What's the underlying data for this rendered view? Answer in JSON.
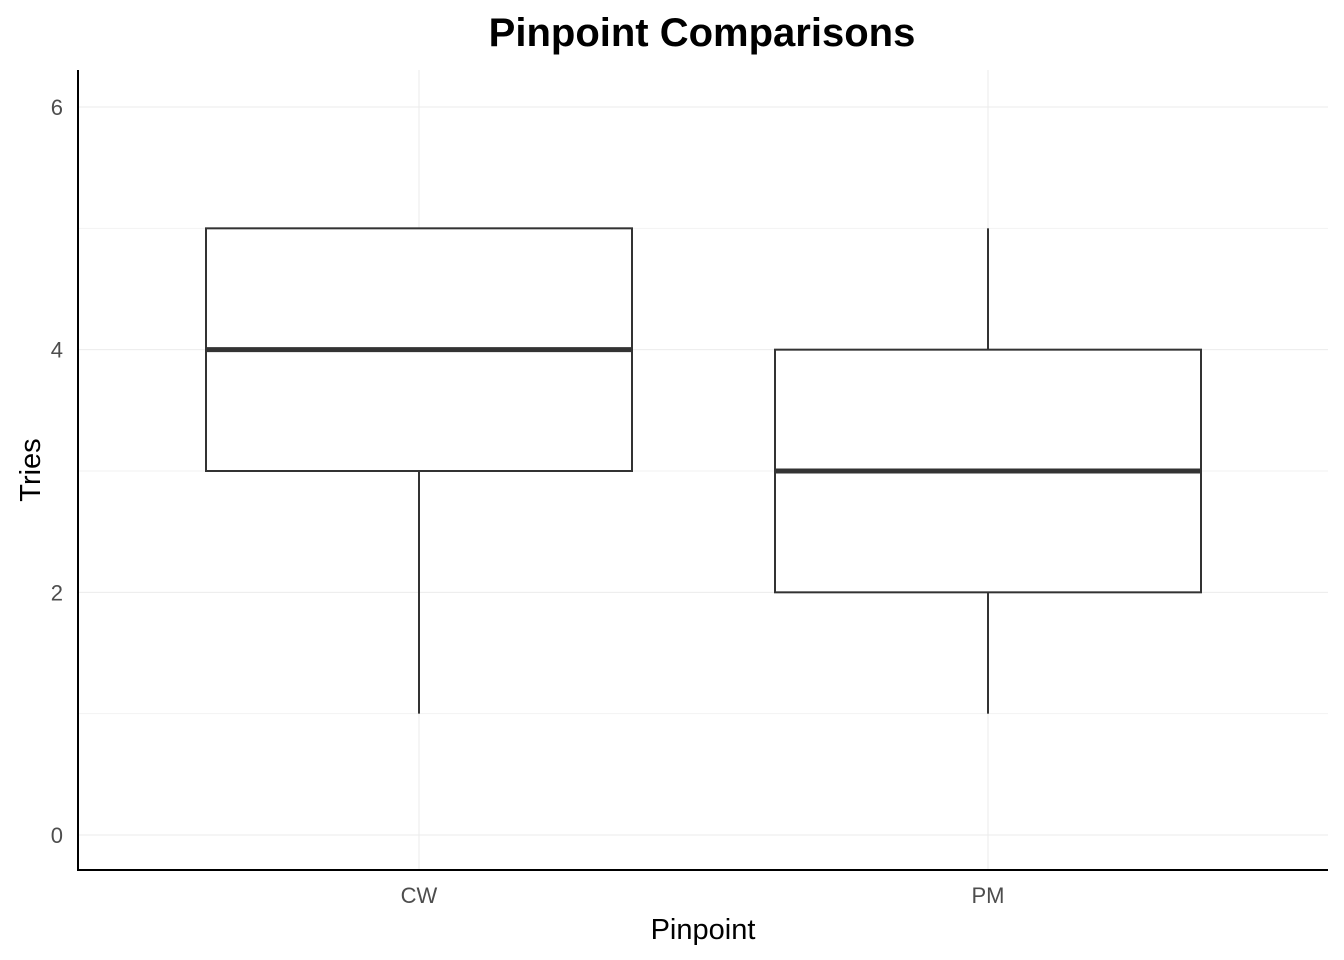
{
  "chart_data": {
    "type": "boxplot",
    "title": "Pinpoint Comparisons",
    "xlabel": "Pinpoint",
    "ylabel": "Tries",
    "categories": [
      "CW",
      "PM"
    ],
    "boxes": [
      {
        "category": "CW",
        "min": 1,
        "q1": 3,
        "median": 4,
        "q3": 5,
        "max": 5
      },
      {
        "category": "PM",
        "min": 1,
        "q1": 2,
        "median": 3,
        "q3": 4,
        "max": 5
      }
    ],
    "yticks": [
      0,
      2,
      4,
      6
    ],
    "ytick_labels": [
      "0",
      "2",
      "4",
      "6"
    ],
    "ylim": [
      -0.28,
      6.28
    ],
    "grid": true,
    "legend": "none",
    "colors": {
      "box_fill": "#ffffff",
      "box_stroke": "#333333",
      "grid": "#ebebeb",
      "axis": "#000000"
    }
  }
}
